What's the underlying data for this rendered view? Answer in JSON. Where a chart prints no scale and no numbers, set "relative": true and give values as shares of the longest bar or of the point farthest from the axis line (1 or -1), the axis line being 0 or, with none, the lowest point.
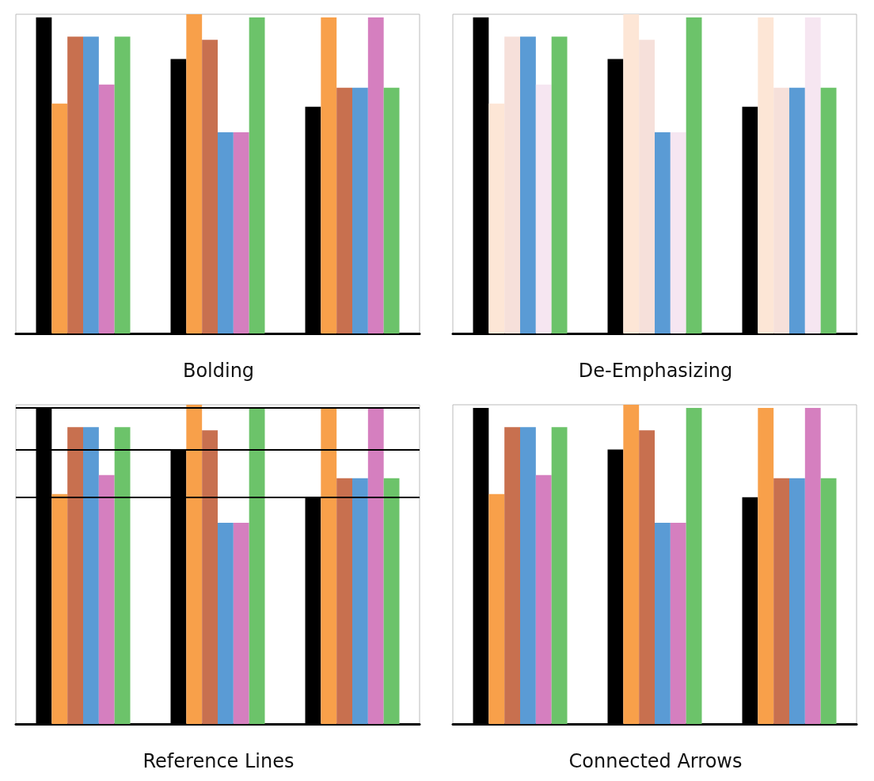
{
  "chart_data": [
    {
      "type": "bar",
      "title": "Bolding",
      "relative": true,
      "categories": [
        null,
        null,
        null
      ],
      "series": [
        {
          "color": "#000000",
          "values": [
            0.99,
            0.86,
            0.71
          ]
        },
        {
          "color": "#f8a04a",
          "values": [
            0.72,
            1.0,
            0.99
          ]
        },
        {
          "color": "#c8704f",
          "values": [
            0.93,
            0.92,
            0.77
          ]
        },
        {
          "color": "#5a9bd5",
          "values": [
            0.93,
            0.63,
            0.77
          ]
        },
        {
          "color": "#d57fbf",
          "values": [
            0.78,
            0.63,
            0.99
          ]
        },
        {
          "color": "#6cc36a",
          "values": [
            0.93,
            0.99,
            0.77
          ]
        }
      ]
    },
    {
      "type": "bar",
      "title": "De-Emphasizing",
      "relative": true,
      "categories": [
        null,
        null,
        null
      ],
      "series": [
        {
          "color": "#000000",
          "values": [
            0.99,
            0.86,
            0.71
          ]
        },
        {
          "color": "#f8a04a",
          "colors": [
            "#fde6d6",
            "#fde6d6",
            "#fde6d6"
          ],
          "values": [
            0.72,
            1.0,
            0.99
          ]
        },
        {
          "color": "#c8704f",
          "colors": [
            "#f6e0da",
            "#f6e0da",
            "#f6e0da"
          ],
          "values": [
            0.93,
            0.92,
            0.77
          ]
        },
        {
          "color": "#5a9bd5",
          "values": [
            0.93,
            0.63,
            0.77
          ]
        },
        {
          "color": "#d57fbf",
          "colors": [
            "#f6e6f1",
            "#f6e6f1",
            "#f6e6f1"
          ],
          "values": [
            0.78,
            0.63,
            0.99
          ]
        },
        {
          "color": "#6cc36a",
          "values": [
            0.93,
            0.99,
            0.77
          ]
        }
      ]
    },
    {
      "type": "bar",
      "title": "Reference Lines",
      "relative": true,
      "categories": [
        null,
        null,
        null
      ],
      "series": [
        {
          "color": "#000000",
          "values": [
            0.99,
            0.86,
            0.71
          ]
        },
        {
          "color": "#f8a04a",
          "values": [
            0.72,
            1.0,
            0.99
          ]
        },
        {
          "color": "#c8704f",
          "values": [
            0.93,
            0.92,
            0.77
          ]
        },
        {
          "color": "#5a9bd5",
          "values": [
            0.93,
            0.63,
            0.77
          ]
        },
        {
          "color": "#d57fbf",
          "values": [
            0.78,
            0.63,
            0.99
          ]
        },
        {
          "color": "#6cc36a",
          "values": [
            0.93,
            0.99,
            0.77
          ]
        }
      ],
      "ref_lines": [
        {
          "axis": "y",
          "value": 0.99,
          "color": "#000000"
        },
        {
          "axis": "y",
          "value": 0.86,
          "color": "#000000"
        },
        {
          "axis": "y",
          "value": 0.71,
          "color": "#000000"
        }
      ]
    },
    {
      "type": "bar",
      "title": "Connected Arrows",
      "relative": true,
      "categories": [
        null,
        null,
        null
      ],
      "series": [
        {
          "color": "#000000",
          "values": [
            0.99,
            0.86,
            0.71
          ]
        },
        {
          "color": "#f8a04a",
          "values": [
            0.72,
            1.0,
            0.99
          ]
        },
        {
          "color": "#c8704f",
          "values": [
            0.93,
            0.92,
            0.77
          ]
        },
        {
          "color": "#5a9bd5",
          "values": [
            0.93,
            0.63,
            0.77
          ]
        },
        {
          "color": "#d57fbf",
          "values": [
            0.78,
            0.63,
            0.99
          ]
        },
        {
          "color": "#6cc36a",
          "values": [
            0.93,
            0.99,
            0.77
          ]
        }
      ]
    }
  ]
}
